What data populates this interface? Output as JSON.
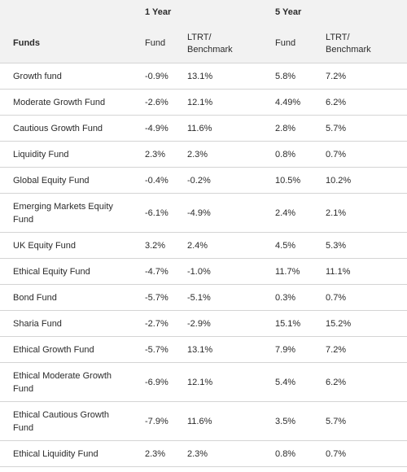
{
  "header": {
    "group_1y": "1 Year",
    "group_5y": "5 Year",
    "funds": "Funds",
    "fund": "Fund",
    "benchmark_line1": "LTRT/",
    "benchmark_line2": "Benchmark"
  },
  "rows": [
    {
      "name": "Growth fund",
      "y1_fund": "-0.9%",
      "y1_bench": "13.1%",
      "y5_fund": "5.8%",
      "y5_bench": "7.2%"
    },
    {
      "name": "Moderate Growth Fund",
      "y1_fund": "-2.6%",
      "y1_bench": "12.1%",
      "y5_fund": "4.49%",
      "y5_bench": "6.2%"
    },
    {
      "name": "Cautious Growth Fund",
      "y1_fund": "-4.9%",
      "y1_bench": "11.6%",
      "y5_fund": "2.8%",
      "y5_bench": "5.7%"
    },
    {
      "name": "Liquidity Fund",
      "y1_fund": "2.3%",
      "y1_bench": "2.3%",
      "y5_fund": "0.8%",
      "y5_bench": "0.7%"
    },
    {
      "name": "Global Equity Fund",
      "y1_fund": "-0.4%",
      "y1_bench": "-0.2%",
      "y5_fund": "10.5%",
      "y5_bench": "10.2%"
    },
    {
      "name": "Emerging Markets Equity Fund",
      "y1_fund": "-6.1%",
      "y1_bench": "-4.9%",
      "y5_fund": "2.4%",
      "y5_bench": "2.1%"
    },
    {
      "name": "UK Equity Fund",
      "y1_fund": "3.2%",
      "y1_bench": "2.4%",
      "y5_fund": "4.5%",
      "y5_bench": "5.3%"
    },
    {
      "name": "Ethical Equity Fund",
      "y1_fund": "-4.7%",
      "y1_bench": "-1.0%",
      "y5_fund": "11.7%",
      "y5_bench": "11.1%"
    },
    {
      "name": "Bond Fund",
      "y1_fund": "-5.7%",
      "y1_bench": "-5.1%",
      "y5_fund": "0.3%",
      "y5_bench": "0.7%"
    },
    {
      "name": "Sharia Fund",
      "y1_fund": "-2.7%",
      "y1_bench": "-2.9%",
      "y5_fund": "15.1%",
      "y5_bench": "15.2%"
    },
    {
      "name": "Ethical Growth Fund",
      "y1_fund": "-5.7%",
      "y1_bench": "13.1%",
      "y5_fund": "7.9%",
      "y5_bench": "7.2%"
    },
    {
      "name": "Ethical Moderate Growth Fund",
      "y1_fund": "-6.9%",
      "y1_bench": "12.1%",
      "y5_fund": "5.4%",
      "y5_bench": "6.2%"
    },
    {
      "name": "Ethical Cautious Growth Fund",
      "y1_fund": "-7.9%",
      "y1_bench": "11.6%",
      "y5_fund": "3.5%",
      "y5_bench": "5.7%"
    },
    {
      "name": "Ethical Liquidity Fund",
      "y1_fund": "2.3%",
      "y1_bench": "2.3%",
      "y5_fund": "0.8%",
      "y5_bench": "0.7%"
    }
  ]
}
